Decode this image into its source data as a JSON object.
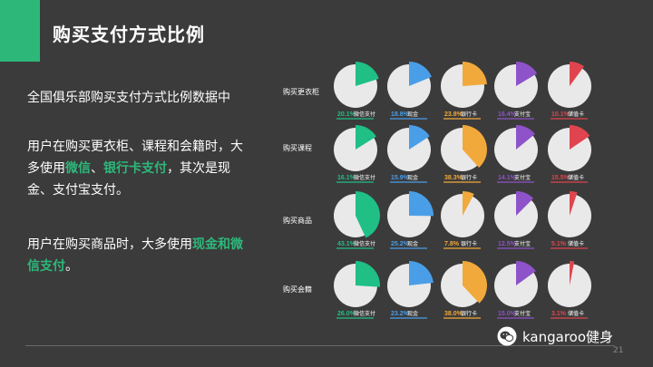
{
  "title": "购买支付方式比例",
  "lead": "全国俱乐部购买支付方式比例数据中",
  "para1": {
    "t1": "用户在购买更衣柜、课程和会籍时，大多使用",
    "h1": "微信",
    "t2": "、",
    "h2": "银行卡支付",
    "t3": "，其次是现金、支付宝支付。"
  },
  "para2": {
    "t1": "用户在购买商品时，大多使用",
    "h1": "现金和微信支付",
    "t2": "。"
  },
  "watermark": "kangaroo健身",
  "page_number": "21",
  "colors": {
    "微信支付": "#1fbf86",
    "现金": "#4a9ee8",
    "银行卡": "#f2a93b",
    "支付宝": "#8e52c9",
    "储值卡": "#e0444f"
  },
  "rows": [
    {
      "label": "购买更衣柜",
      "items": [
        {
          "method": "微信支付",
          "pct": 20.1,
          "pct_text": "20.1%"
        },
        {
          "method": "现金",
          "pct": 18.8,
          "pct_text": "18.8%"
        },
        {
          "method": "银行卡",
          "pct": 23.8,
          "pct_text": "23.8%"
        },
        {
          "method": "支付宝",
          "pct": 16.4,
          "pct_text": "16.4%"
        },
        {
          "method": "储值卡",
          "pct": 10.1,
          "pct_text": "10.1%"
        }
      ]
    },
    {
      "label": "购买课程",
      "items": [
        {
          "method": "微信支付",
          "pct": 16.1,
          "pct_text": "16.1%"
        },
        {
          "method": "现金",
          "pct": 15.9,
          "pct_text": "15.9%"
        },
        {
          "method": "银行卡",
          "pct": 38.3,
          "pct_text": "38.3%"
        },
        {
          "method": "支付宝",
          "pct": 14.1,
          "pct_text": "14.1%"
        },
        {
          "method": "储值卡",
          "pct": 15.5,
          "pct_text": "15.5%"
        }
      ]
    },
    {
      "label": "购买商品",
      "items": [
        {
          "method": "微信支付",
          "pct": 43.1,
          "pct_text": "43.1%"
        },
        {
          "method": "现金",
          "pct": 25.2,
          "pct_text": "25.2%"
        },
        {
          "method": "银行卡",
          "pct": 7.8,
          "pct_text": "7.8%"
        },
        {
          "method": "支付宝",
          "pct": 12.5,
          "pct_text": "12.5%"
        },
        {
          "method": "储值卡",
          "pct": 5.1,
          "pct_text": "5.1%"
        }
      ]
    },
    {
      "label": "购买会籍",
      "items": [
        {
          "method": "微信支付",
          "pct": 26.0,
          "pct_text": "26.0%"
        },
        {
          "method": "现金",
          "pct": 23.2,
          "pct_text": "23.2%"
        },
        {
          "method": "银行卡",
          "pct": 38.0,
          "pct_text": "38.0%"
        },
        {
          "method": "支付宝",
          "pct": 15.0,
          "pct_text": "15.0%"
        },
        {
          "method": "储值卡",
          "pct": 3.1,
          "pct_text": "3.1%"
        }
      ]
    }
  ]
}
